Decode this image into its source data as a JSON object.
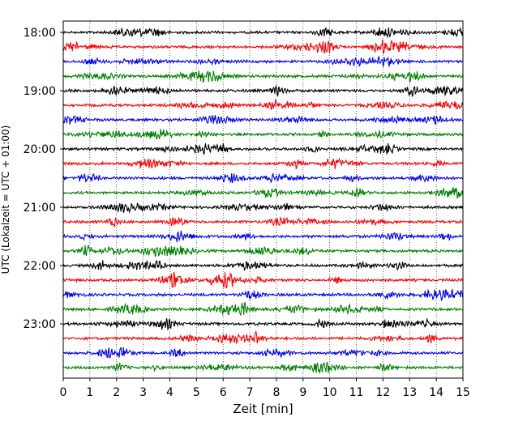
{
  "chart_data": {
    "type": "line",
    "title": "",
    "xlabel": "Zeit  [min]",
    "ylabel": "UTC (Lokalzeit = UTC + 01:00)",
    "xlim": [
      0,
      15
    ],
    "x_ticks": [
      "0",
      "1",
      "2",
      "3",
      "4",
      "5",
      "6",
      "7",
      "8",
      "9",
      "10",
      "11",
      "12",
      "13",
      "14",
      "15"
    ],
    "y_ticks": [
      {
        "time": "18:00",
        "trace": 0
      },
      {
        "time": "19:00",
        "trace": 4
      },
      {
        "time": "20:00",
        "trace": 8
      },
      {
        "time": "21:00",
        "trace": 12
      },
      {
        "time": "22:00",
        "trace": 16
      },
      {
        "time": "23:00",
        "trace": 20
      }
    ],
    "grid": "vertical dotted at each minute",
    "trace_interval_minutes": 15,
    "trace_count": 24,
    "trace_colors": [
      "#000000",
      "#ff0000",
      "#0000ff",
      "#008000"
    ]
  }
}
